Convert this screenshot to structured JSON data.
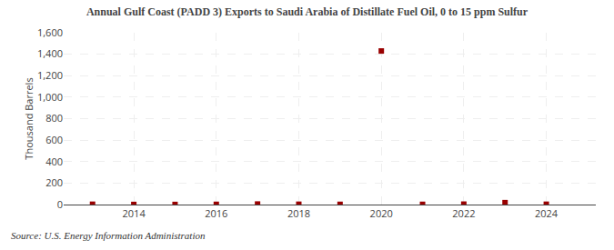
{
  "chart_data": {
    "type": "scatter",
    "title": "Annual Gulf Coast (PADD 3) Exports to Saudi Arabia of Distillate Fuel Oil, 0 to 15 ppm Sulfur",
    "y_label": "Thousand Barrels",
    "annotations": [
      "Source: U.S. Energy Information Administration"
    ],
    "x": [
      2013,
      2014,
      2015,
      2016,
      2017,
      2018,
      2019,
      2020,
      2021,
      2022,
      2023,
      2024
    ],
    "values": [
      3,
      1,
      1,
      2,
      5,
      3,
      2,
      1430,
      2,
      4,
      18,
      3
    ],
    "color": "#990000",
    "marker": "square",
    "xlim": [
      2012.3,
      2025.2
    ],
    "xticks": [
      2014,
      2016,
      2018,
      2020,
      2022,
      2024
    ],
    "ylim": [
      0,
      1600
    ],
    "yticks": [
      0,
      200,
      400,
      600,
      800,
      {
        "value": 1000,
        "label": "1,000"
      },
      {
        "value": 1200,
        "label": "1,200"
      },
      {
        "value": 1400,
        "label": "1,400"
      },
      {
        "value": 1600,
        "label": "1,600"
      }
    ],
    "grid": true
  }
}
